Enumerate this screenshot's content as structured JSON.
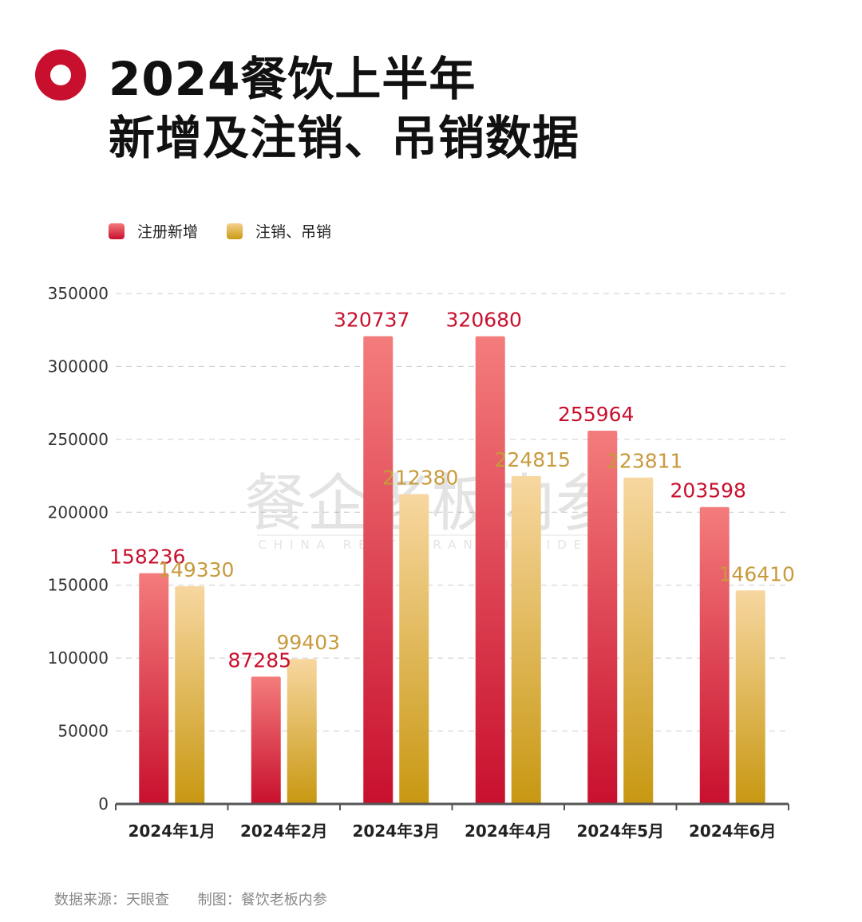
{
  "title_lines": [
    "2024餐饮上半年",
    "新增及注销、吊销数据"
  ],
  "legend": [
    "注册新增",
    "注销、吊销"
  ],
  "footer": {
    "source": "数据来源：天眼查",
    "author": "制图：餐饮老板内参"
  },
  "watermark": {
    "cn": "餐企老板内参",
    "en": "CHINA RESTAURANT INSIDER"
  },
  "colors": {
    "new": "#c8102e",
    "cancel": "#c89a3c",
    "axis": "#555555"
  },
  "chart_data": {
    "type": "bar",
    "categories": [
      "2024年1月",
      "2024年2月",
      "2024年3月",
      "2024年4月",
      "2024年5月",
      "2024年6月"
    ],
    "series": [
      {
        "name": "注册新增",
        "values": [
          158236,
          87285,
          320737,
          320680,
          255964,
          203598
        ]
      },
      {
        "name": "注销、吊销",
        "values": [
          149330,
          99403,
          212380,
          224815,
          223811,
          146410
        ]
      }
    ],
    "ylim": [
      0,
      350000
    ],
    "yticks": [
      0,
      50000,
      100000,
      150000,
      200000,
      250000,
      300000,
      350000
    ],
    "grid": true,
    "legend_position": "top-left"
  }
}
